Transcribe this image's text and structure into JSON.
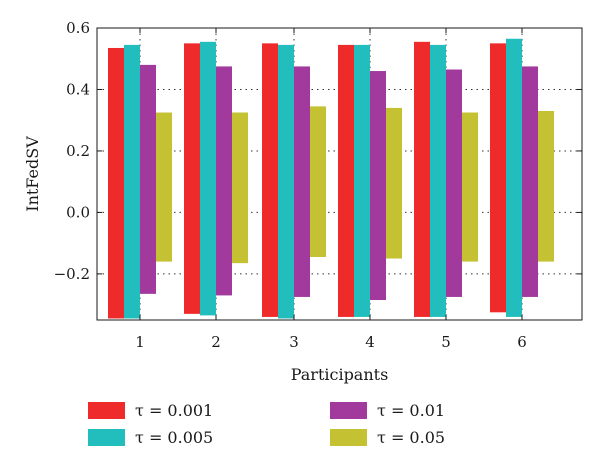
{
  "chart_data": {
    "type": "bar",
    "xlabel": "Participants",
    "ylabel": "IntFedSV",
    "ylim": [
      -0.35,
      0.6
    ],
    "yticks": [
      "−0.2",
      "0.0",
      "0.2",
      "0.4",
      "0.6"
    ],
    "ytick_values": [
      -0.2,
      0.0,
      0.2,
      0.4,
      0.6
    ],
    "categories": [
      "1",
      "2",
      "3",
      "4",
      "5",
      "6"
    ],
    "grid": "dotted horizontal and vertical",
    "legend_position": "bottom",
    "series": [
      {
        "name": "τ = 0.001",
        "color": "#ee2a2a",
        "top": [
          0.535,
          0.55,
          0.55,
          0.545,
          0.555,
          0.55
        ],
        "bottom": [
          -0.345,
          -0.33,
          -0.34,
          -0.34,
          -0.34,
          -0.325
        ]
      },
      {
        "name": "τ = 0.005",
        "color": "#22bdbd",
        "top": [
          0.545,
          0.555,
          0.545,
          0.545,
          0.545,
          0.565
        ],
        "bottom": [
          -0.345,
          -0.335,
          -0.345,
          -0.34,
          -0.34,
          -0.34
        ]
      },
      {
        "name": "τ = 0.01",
        "color": "#a23a9e",
        "top": [
          0.48,
          0.475,
          0.475,
          0.46,
          0.465,
          0.475
        ],
        "bottom": [
          -0.265,
          -0.27,
          -0.275,
          -0.285,
          -0.275,
          -0.275
        ]
      },
      {
        "name": "τ = 0.05",
        "color": "#c4c232",
        "top": [
          0.325,
          0.325,
          0.345,
          0.34,
          0.325,
          0.33
        ],
        "bottom": [
          -0.16,
          -0.165,
          -0.145,
          -0.15,
          -0.16,
          -0.16
        ]
      }
    ]
  }
}
